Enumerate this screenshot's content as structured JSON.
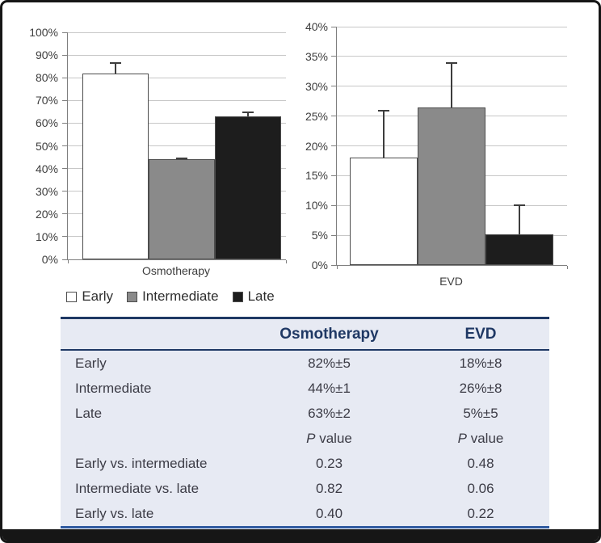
{
  "figure": {
    "legend": {
      "items": [
        {
          "label": "Early",
          "color": "#ffffff"
        },
        {
          "label": "Intermediate",
          "color": "#8a8a8a"
        },
        {
          "label": "Late",
          "color": "#1d1d1d"
        }
      ]
    }
  },
  "chart_data": [
    {
      "type": "bar",
      "title": "",
      "categories": [
        "Early",
        "Intermediate",
        "Late"
      ],
      "values": [
        82,
        44,
        63
      ],
      "errors": [
        5,
        1,
        2
      ],
      "bar_colors": [
        "#ffffff",
        "#8a8a8a",
        "#1d1d1d"
      ],
      "xlabel": "Osmotherapy",
      "ylabel": "",
      "ylim": [
        0,
        100
      ],
      "ytick_step": 10,
      "tick_suffix": "%",
      "grid": true,
      "legend_position": "below"
    },
    {
      "type": "bar",
      "title": "",
      "categories": [
        "Early",
        "Intermediate",
        "Late"
      ],
      "values": [
        18,
        26.5,
        5.2
      ],
      "errors": [
        8,
        7.5,
        5
      ],
      "bar_colors": [
        "#ffffff",
        "#8a8a8a",
        "#1d1d1d"
      ],
      "xlabel": "EVD",
      "ylabel": "",
      "ylim": [
        0,
        40
      ],
      "ytick_step": 5,
      "tick_suffix": "%",
      "grid": true,
      "legend_position": "shared"
    }
  ],
  "table": {
    "headers": [
      "",
      "Osmotherapy",
      "EVD"
    ],
    "rows": [
      {
        "label": "Early",
        "osmotherapy": "82%±5",
        "evd": "18%±8",
        "pvalue_header": false
      },
      {
        "label": "Intermediate",
        "osmotherapy": "44%±1",
        "evd": "26%±8",
        "pvalue_header": false
      },
      {
        "label": "Late",
        "osmotherapy": "63%±2",
        "evd": "5%±5",
        "pvalue_header": false
      },
      {
        "label": "",
        "osmotherapy": "P value",
        "evd": "P value",
        "pvalue_header": true
      },
      {
        "label": "Early vs. intermediate",
        "osmotherapy": "0.23",
        "evd": "0.48",
        "pvalue_header": false
      },
      {
        "label": "Intermediate vs. late",
        "osmotherapy": "0.82",
        "evd": "0.06",
        "pvalue_header": false
      },
      {
        "label": "Early vs. late",
        "osmotherapy": "0.40",
        "evd": "0.22",
        "pvalue_header": false
      }
    ]
  },
  "colors": {
    "frame_border": "#161616",
    "table_background": "#e7eaf3",
    "table_line_dark": "#1f3864",
    "table_line_bottom": "#2f5aa0",
    "gridline": "#c7c7c7",
    "axis": "#7f7f7f",
    "error_bar": "#3d3d3d"
  }
}
